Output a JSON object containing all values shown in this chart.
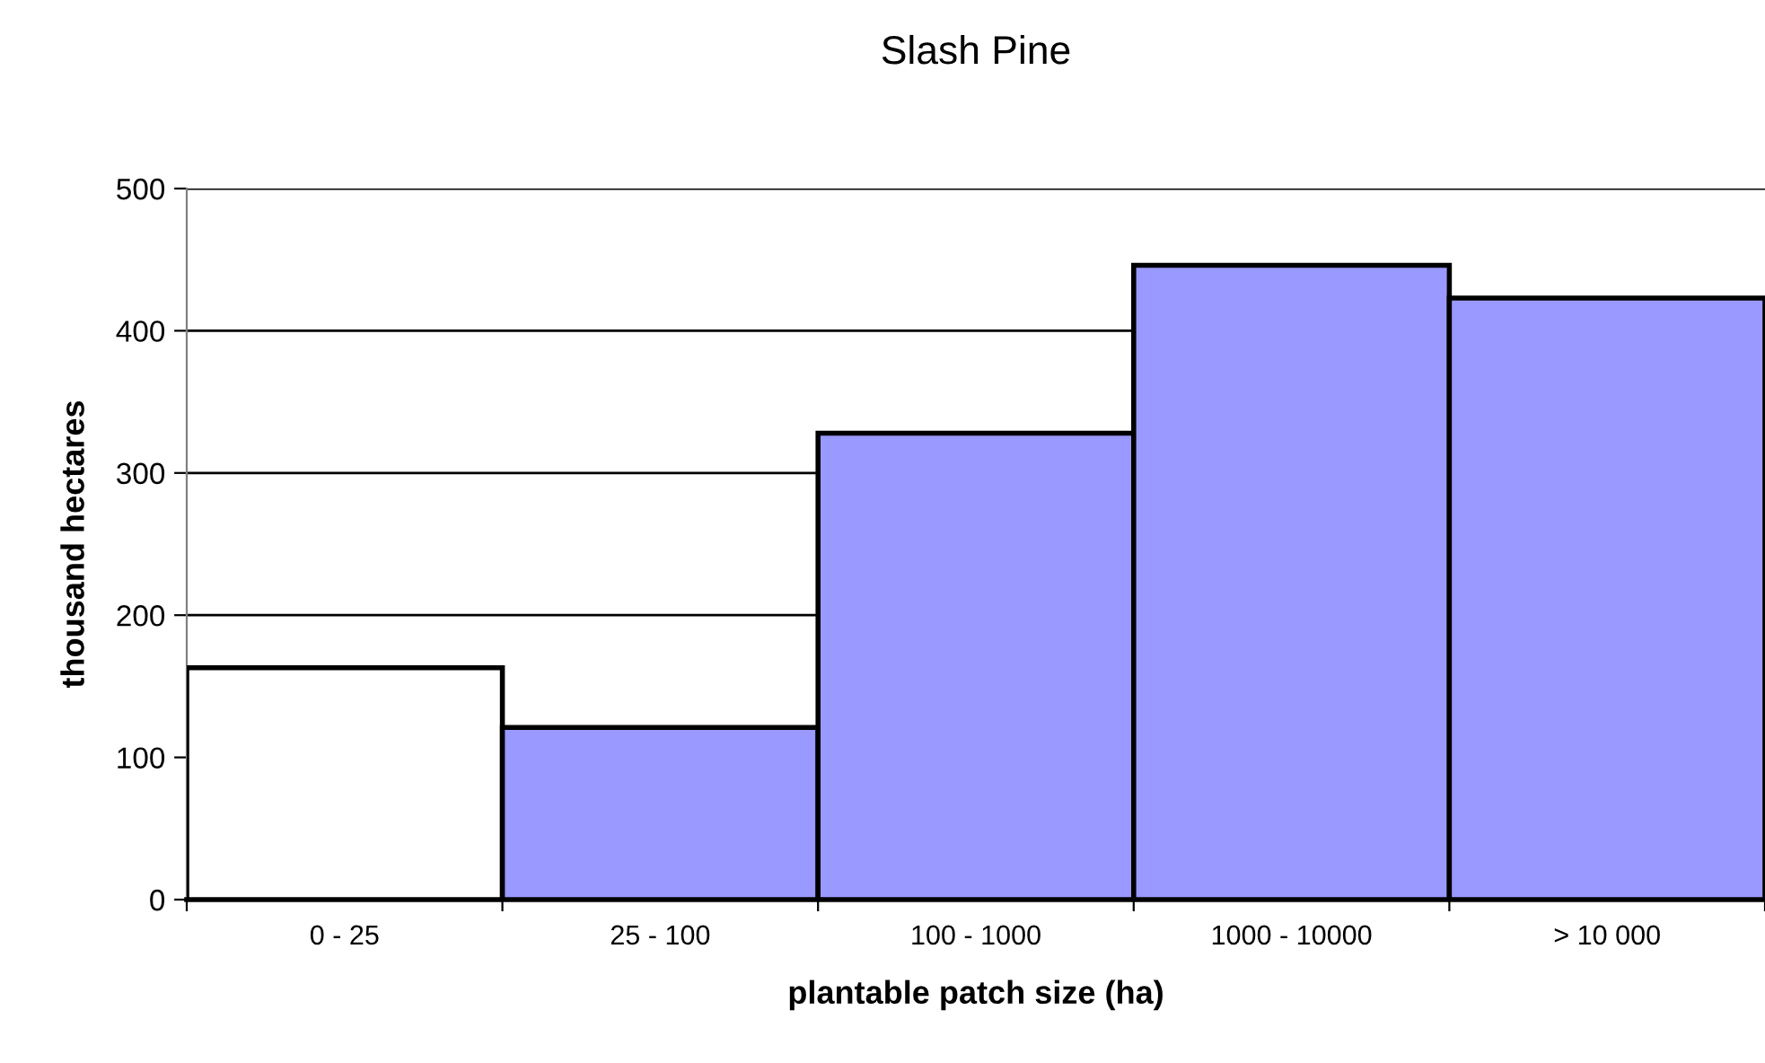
{
  "chart_data": {
    "type": "bar",
    "title": "Slash Pine",
    "xlabel": "plantable patch size (ha)",
    "ylabel": "thousand hectares",
    "categories": [
      "0 - 25",
      "25 - 100",
      "100 - 1000",
      "1000 - 10000",
      "> 10 000"
    ],
    "values": [
      163,
      121,
      328,
      446,
      423
    ],
    "colors": [
      "#ffffff",
      "#9999ff",
      "#9999ff",
      "#9999ff",
      "#9999ff"
    ],
    "ylim": [
      0,
      500
    ],
    "yticks": [
      0,
      100,
      200,
      300,
      400,
      500
    ],
    "grid": "y"
  }
}
